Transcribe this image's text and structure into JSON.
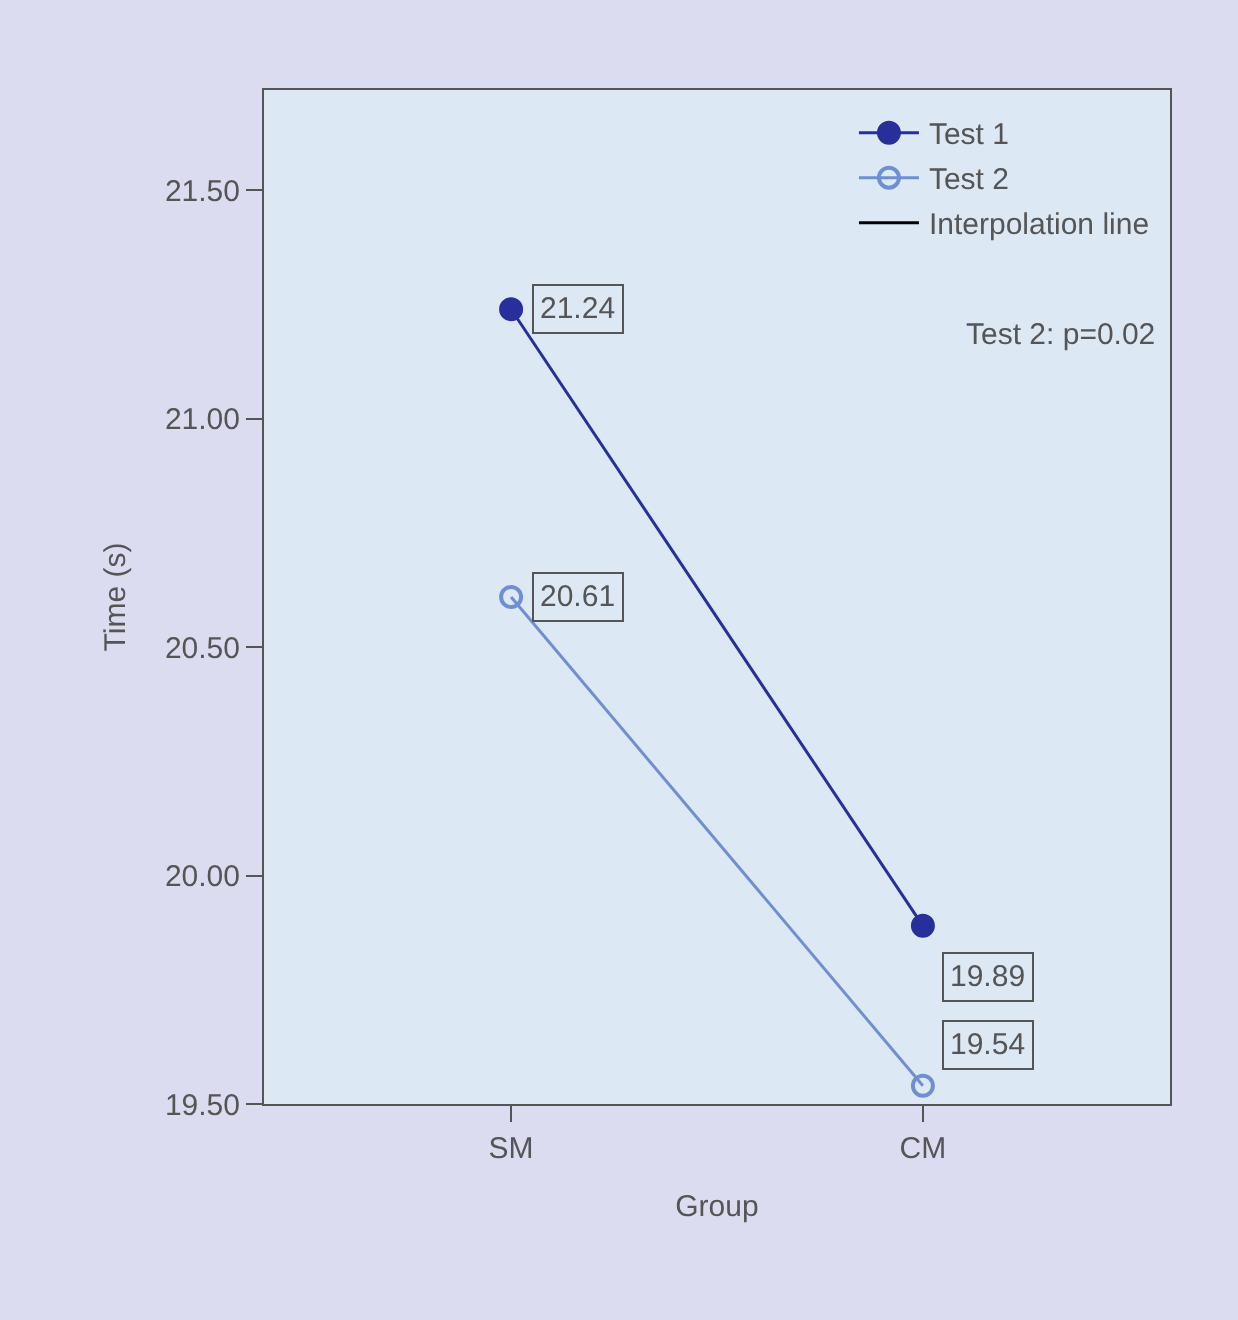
{
  "chart_data": {
    "type": "line",
    "xlabel": "Group",
    "ylabel": "Time (s)",
    "categories": [
      "SM",
      "CM"
    ],
    "series": [
      {
        "name": "Test 1",
        "color": "#27309a",
        "marker": "circle",
        "values": [
          21.24,
          19.89
        ]
      },
      {
        "name": "Test 2",
        "color": "#6f8fd0",
        "marker": "circle-open",
        "values": [
          20.61,
          19.54
        ]
      },
      {
        "name": "Interpolation line",
        "color": "#000000",
        "marker": "none",
        "values": [
          null,
          null
        ]
      }
    ],
    "data_labels": true,
    "ylim": [
      19.5,
      21.72
    ],
    "yticks": [
      {
        "value": 19.5,
        "label": "19.50"
      },
      {
        "value": 20,
        "label": "20.00"
      },
      {
        "value": 20.5,
        "label": "20.50"
      },
      {
        "value": 21,
        "label": "21.00"
      },
      {
        "value": 21.5,
        "label": "21.50"
      }
    ],
    "annotations": [
      "Test 2: p=0.02"
    ],
    "legend": "top right",
    "grid": false
  }
}
